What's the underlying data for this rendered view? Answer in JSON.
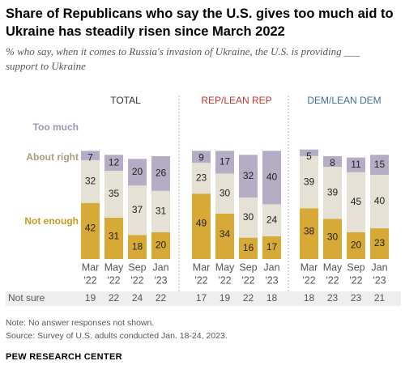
{
  "header": {
    "title": "Share of Republicans who say the U.S. gives too much aid to Ukraine has steadily risen since March 2022",
    "subtitle": "% who say, when it comes to Russia's invasion of Ukraine, the U.S. is providing ___ support to Ukraine"
  },
  "footer": {
    "note": "Note: No answer responses not shown.",
    "source": "Source: Survey of U.S. adults conducted Jan. 18-24, 2023.",
    "brand": "PEW RESEARCH CENTER"
  },
  "chart_data": {
    "type": "bar",
    "stacked": true,
    "categories": [
      "Mar '22",
      "May '22",
      "Sep '22",
      "Jan '23"
    ],
    "category_lines": [
      [
        "Mar",
        "'22"
      ],
      [
        "May",
        "'22"
      ],
      [
        "Sep",
        "'22"
      ],
      [
        "Jan",
        "'23"
      ]
    ],
    "stack_labels": [
      "Not enough",
      "About right",
      "Too much"
    ],
    "stack_colors": {
      "Not enough": "#d7a936",
      "About right": "#e5e1d4",
      "Too much": "#b4adc5"
    },
    "label_colors": {
      "Not enough": "#c79a22",
      "About right": "#a69c7e",
      "Too much": "#9e95b4"
    },
    "not_sure_label": "Not sure",
    "ylim": [
      0,
      100
    ],
    "panels": [
      {
        "name": "TOTAL",
        "title_color": "#333333",
        "not_enough": [
          42,
          31,
          18,
          20
        ],
        "about_right": [
          32,
          35,
          37,
          31
        ],
        "too_much": [
          7,
          12,
          20,
          26
        ],
        "not_sure": [
          19,
          22,
          24,
          22
        ]
      },
      {
        "name": "REP/LEAN REP",
        "title_color": "#c8322d",
        "not_enough": [
          49,
          34,
          16,
          17
        ],
        "about_right": [
          23,
          30,
          30,
          24
        ],
        "too_much": [
          9,
          17,
          32,
          40
        ],
        "not_sure": [
          17,
          19,
          22,
          18
        ]
      },
      {
        "name": "DEM/LEAN DEM",
        "title_color": "#3b6f9b",
        "not_enough": [
          38,
          30,
          20,
          23
        ],
        "about_right": [
          39,
          39,
          45,
          40
        ],
        "too_much": [
          5,
          8,
          11,
          15
        ],
        "not_sure": [
          18,
          23,
          23,
          21
        ]
      }
    ]
  }
}
